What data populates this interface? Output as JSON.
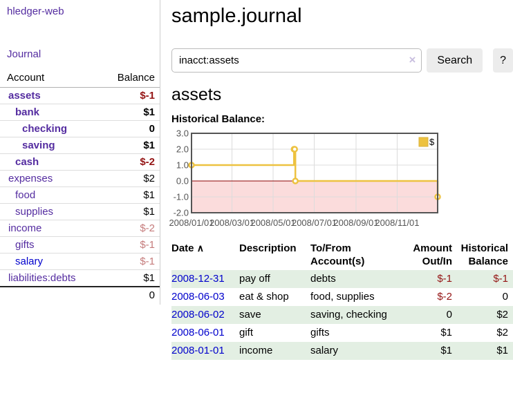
{
  "app": {
    "title": "hledger-web"
  },
  "sidebar": {
    "journal_link": "Journal",
    "table": {
      "account_header": "Account",
      "balance_header": "Balance",
      "rows": [
        {
          "name": "assets",
          "indent": 1,
          "bold": true,
          "balance": "$-1",
          "balance_style": "negative"
        },
        {
          "name": "bank",
          "indent": 2,
          "bold": true,
          "balance": "$1",
          "balance_style": "normal"
        },
        {
          "name": "checking",
          "indent": 3,
          "bold": true,
          "balance": "0",
          "balance_style": "normal"
        },
        {
          "name": "saving",
          "indent": 3,
          "bold": true,
          "balance": "$1",
          "balance_style": "normal"
        },
        {
          "name": "cash",
          "indent": 2,
          "bold": true,
          "balance": "$-2",
          "balance_style": "negative"
        },
        {
          "name": "expenses",
          "indent": 1,
          "bold": false,
          "balance": "$2",
          "balance_style": "normal"
        },
        {
          "name": "food",
          "indent": 2,
          "bold": false,
          "balance": "$1",
          "balance_style": "normal"
        },
        {
          "name": "supplies",
          "indent": 2,
          "bold": false,
          "balance": "$1",
          "balance_style": "normal"
        },
        {
          "name": "income",
          "indent": 1,
          "bold": false,
          "balance": "$-2",
          "balance_style": "negative-muted"
        },
        {
          "name": "gifts",
          "indent": 2,
          "bold": false,
          "balance": "$-1",
          "balance_style": "negative-muted"
        },
        {
          "name": "salary",
          "indent": 2,
          "bold": false,
          "link_color": "blue",
          "balance": "$-1",
          "balance_style": "negative-muted"
        },
        {
          "name": "liabilities:debts",
          "indent": 1,
          "bold": false,
          "balance": "$1",
          "balance_style": "normal",
          "last": true
        }
      ],
      "total": "0"
    }
  },
  "header": {
    "title": "sample.journal"
  },
  "search": {
    "value": "inacct:assets",
    "button": "Search",
    "help_button": "?"
  },
  "icons": {
    "clear_search": "×",
    "sort_ascending": "∧"
  },
  "account_page": {
    "heading": "assets",
    "chart_label": "Historical Balance:"
  },
  "chart_data": {
    "type": "line",
    "title": "Historical Balance",
    "step": true,
    "series": [
      {
        "name": "$",
        "color": "#edc240",
        "points": [
          [
            "2008-01-01",
            1
          ],
          [
            "2008-06-01",
            2
          ],
          [
            "2008-06-02",
            2
          ],
          [
            "2008-06-03",
            0
          ],
          [
            "2008-12-31",
            -1
          ]
        ]
      }
    ],
    "x_ticks": [
      "2008/01/01",
      "2008/03/01",
      "2008/05/01",
      "2008/07/01",
      "2008/09/01",
      "2008/11/01"
    ],
    "x_tick_days": [
      0,
      60,
      121,
      182,
      244,
      305
    ],
    "x_range_days": [
      0,
      365
    ],
    "y_ticks": [
      3.0,
      2.0,
      1.0,
      0.0,
      -1.0,
      -2.0
    ],
    "y_tick_labels": [
      "3.0",
      "2.0",
      "1.0",
      "0.0",
      "-1.0",
      "-2.0"
    ],
    "ylim": [
      -2,
      3
    ],
    "grid": true,
    "legend_position": "top-right",
    "negative_region": true
  },
  "transactions": {
    "columns": {
      "date": "Date",
      "description": "Description",
      "accounts": "To/From Account(s)",
      "amount": "Amount Out/In",
      "balance": "Historical Balance"
    },
    "rows": [
      {
        "date": "2008-12-31",
        "description": "pay off",
        "accounts": "debts",
        "amount": "$-1",
        "amount_negative": true,
        "balance": "$-1",
        "balance_negative": true,
        "green": true
      },
      {
        "date": "2008-06-03",
        "description": "eat & shop",
        "accounts": "food, supplies",
        "amount": "$-2",
        "amount_negative": true,
        "balance": "0",
        "balance_negative": false,
        "green": false
      },
      {
        "date": "2008-06-02",
        "description": "save",
        "accounts": "saving, checking",
        "amount": "0",
        "amount_negative": false,
        "balance": "$2",
        "balance_negative": false,
        "green": true
      },
      {
        "date": "2008-06-01",
        "description": "gift",
        "accounts": "gifts",
        "amount": "$1",
        "amount_negative": false,
        "balance": "$2",
        "balance_negative": false,
        "green": false
      },
      {
        "date": "2008-01-01",
        "description": "income",
        "accounts": "salary",
        "amount": "$1",
        "amount_negative": false,
        "balance": "$1",
        "balance_negative": false,
        "green": true
      }
    ]
  },
  "colors": {
    "purple": "#542ca0",
    "blue": "#0000cc",
    "negative": "#941414",
    "negmuted": "#c57b7b",
    "green": "#e3efe3",
    "btnbg": "#ececec",
    "clearx": "#c9bfdf",
    "gold": "#edc240",
    "gold_border": "#d9b13b",
    "tick": "#545454",
    "zero_line": "#8b0000",
    "neg_region": "#fbdcdc",
    "grid_line": "#dcdcdc",
    "chart_border": "#545454"
  }
}
